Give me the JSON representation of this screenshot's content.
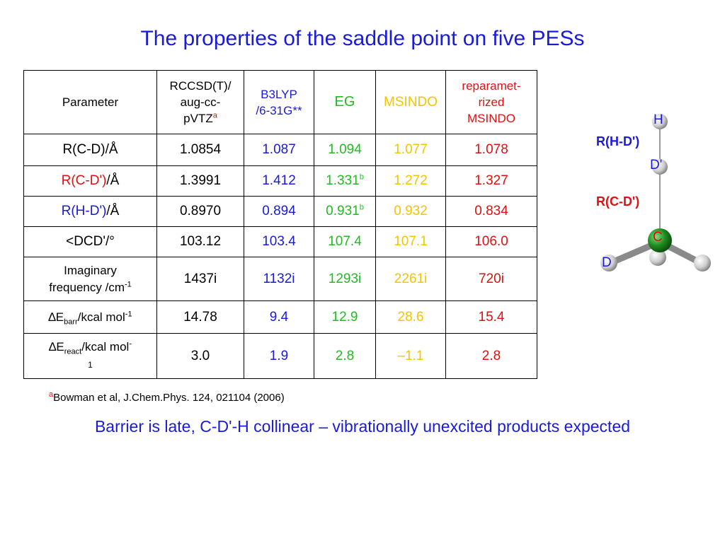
{
  "title": "The properties of the saddle point on five PESs",
  "table": {
    "headers": {
      "param": "Parameter",
      "rccsd_l1": "RCCSD(T)/",
      "rccsd_l2": "aug-cc-",
      "rccsd_l3": "pVTZ",
      "rccsd_sup": "a",
      "b3lyp_l1": "B3LYP",
      "b3lyp_l2": "/6-31G**",
      "eg": "EG",
      "msindo": "MSINDO",
      "rep_l1": "reparamet-",
      "rep_l2": "rized",
      "rep_l3": "MSINDO"
    },
    "rows": [
      {
        "param": "R(C-D)/Å",
        "rccsd": "1.0854",
        "b3lyp": "1.087",
        "eg": "1.094",
        "msindo": "1.077",
        "rep": "1.078"
      },
      {
        "param_a": "R(C-D')",
        "param_b": "/Å",
        "rccsd": "1.3991",
        "b3lyp": "1.412",
        "eg": "1.331",
        "eg_sup": "b",
        "msindo": "1.272",
        "rep": "1.327"
      },
      {
        "param_a": "R(H-D')",
        "param_b": "/Å",
        "rccsd": "0.8970",
        "b3lyp": "0.894",
        "eg": "0.931",
        "eg_sup": "b",
        "msindo": "0.932",
        "rep": "0.834"
      },
      {
        "param": "<DCD'/°",
        "rccsd": "103.12",
        "b3lyp": "103.4",
        "eg": "107.4",
        "msindo": "107.1",
        "rep": "106.0"
      },
      {
        "param_l1": "Imaginary",
        "param_l2": "frequency /cm",
        "param_sup": "-1",
        "rccsd": "1437i",
        "b3lyp": "1132i",
        "eg": "1293i",
        "msindo": "2261i",
        "rep": "720i"
      },
      {
        "param_delta": "∆E",
        "param_sub": "barr",
        "param_rest": "/kcal mol",
        "param_sup": "-1",
        "rccsd": "14.78",
        "b3lyp": "9.4",
        "eg": "12.9",
        "msindo": "28.6",
        "rep": "15.4"
      },
      {
        "param_delta": "∆E",
        "param_sub": "react",
        "param_rest": "/kcal mol",
        "param_sup": "-",
        "param_l2": "1",
        "rccsd": "3.0",
        "b3lyp": "1.9",
        "eg": "2.8",
        "msindo": "–1.1",
        "rep": "2.8"
      }
    ]
  },
  "footnote": {
    "sup": "a",
    "text": "Bowman et al, J.Chem.Phys. 124, 021104 (2006)"
  },
  "bottom_text": "Barrier is late, C-D'-H collinear – vibrationally unexcited products expected",
  "molecule": {
    "labels": {
      "H": "H",
      "D_prime": "D'",
      "C": "C",
      "D": "D",
      "RHD": "R(H-D')",
      "RCD": "R(C-D')"
    },
    "colors": {
      "carbon": "#1e7a1e",
      "atom": "#d8d8d8",
      "bond": "#7a7a7a"
    }
  },
  "colors": {
    "blue": "#1a1adb",
    "green": "#22bb22",
    "gold": "#f5c400",
    "red": "#e01010"
  }
}
